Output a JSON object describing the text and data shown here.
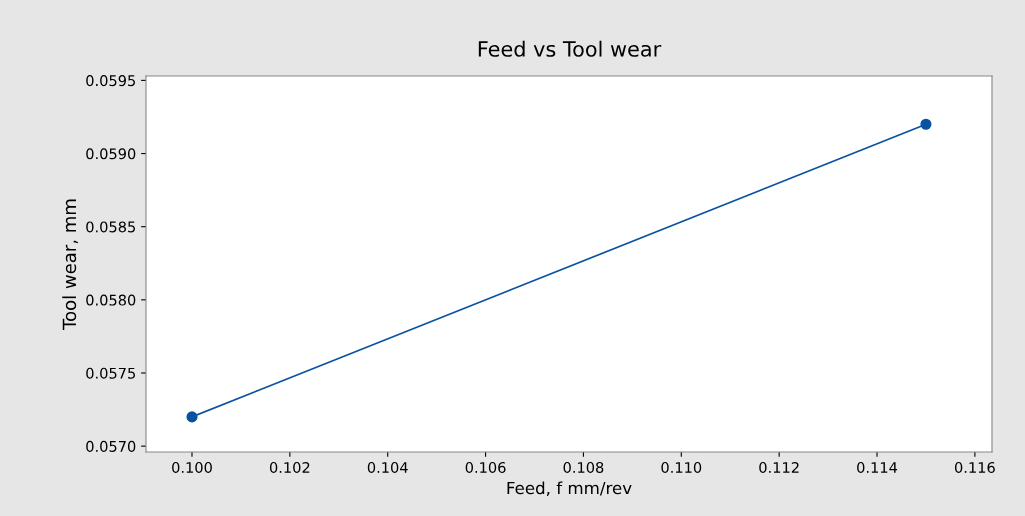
{
  "chart_data": {
    "type": "line",
    "title": "Feed vs Tool wear",
    "xlabel": "Feed, f mm/rev",
    "ylabel": "Tool wear, mm",
    "x": [
      0.1,
      0.115
    ],
    "series": [
      {
        "color": "#0a52a0",
        "values": [
          0.0572,
          0.0592
        ]
      }
    ],
    "xlim": [
      0.09906,
      0.11635
    ],
    "ylim": [
      0.05696,
      0.05953
    ],
    "xticks": [
      {
        "value": 0.1,
        "label": "0.100"
      },
      {
        "value": 0.102,
        "label": "0.102"
      },
      {
        "value": 0.104,
        "label": "0.104"
      },
      {
        "value": 0.106,
        "label": "0.106"
      },
      {
        "value": 0.108,
        "label": "0.108"
      },
      {
        "value": 0.11,
        "label": "0.110"
      },
      {
        "value": 0.112,
        "label": "0.112"
      },
      {
        "value": 0.114,
        "label": "0.114"
      },
      {
        "value": 0.116,
        "label": "0.116"
      }
    ],
    "yticks": [
      {
        "value": 0.057,
        "label": "0.0570"
      },
      {
        "value": 0.0575,
        "label": "0.0575"
      },
      {
        "value": 0.058,
        "label": "0.0580"
      },
      {
        "value": 0.0585,
        "label": "0.0585"
      },
      {
        "value": 0.059,
        "label": "0.0590"
      },
      {
        "value": 0.0595,
        "label": "0.0595"
      }
    ],
    "marker": "circle",
    "line_style": "solid",
    "grid": false
  }
}
